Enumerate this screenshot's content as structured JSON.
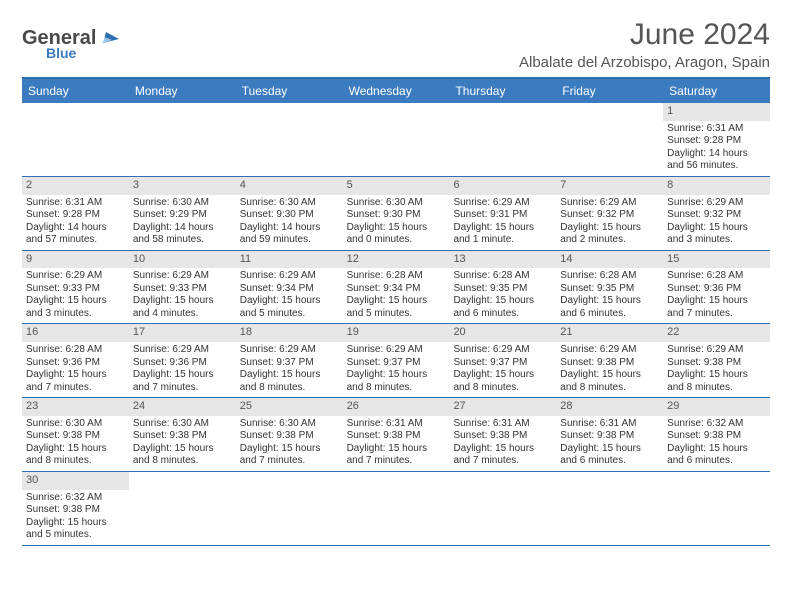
{
  "logo": {
    "primary": "General",
    "secondary": "Blue"
  },
  "title": "June 2024",
  "location": "Albalate del Arzobispo, Aragon, Spain",
  "colors": {
    "header_bg": "#3b7bbf",
    "rule": "#2e6fb0",
    "daynum_bg": "#e6e6e6",
    "text": "#333333",
    "muted": "#555555"
  },
  "typography": {
    "title_fontsize": 30,
    "location_fontsize": 15,
    "dow_fontsize": 12,
    "daynum_fontsize": 11,
    "body_fontsize": 10
  },
  "days_of_week": [
    "Sunday",
    "Monday",
    "Tuesday",
    "Wednesday",
    "Thursday",
    "Friday",
    "Saturday"
  ],
  "weeks": [
    [
      {
        "empty": true
      },
      {
        "empty": true
      },
      {
        "empty": true
      },
      {
        "empty": true
      },
      {
        "empty": true
      },
      {
        "empty": true
      },
      {
        "num": "1",
        "sunrise": "Sunrise: 6:31 AM",
        "sunset": "Sunset: 9:28 PM",
        "daylight": "Daylight: 14 hours and 56 minutes."
      }
    ],
    [
      {
        "num": "2",
        "sunrise": "Sunrise: 6:31 AM",
        "sunset": "Sunset: 9:28 PM",
        "daylight": "Daylight: 14 hours and 57 minutes."
      },
      {
        "num": "3",
        "sunrise": "Sunrise: 6:30 AM",
        "sunset": "Sunset: 9:29 PM",
        "daylight": "Daylight: 14 hours and 58 minutes."
      },
      {
        "num": "4",
        "sunrise": "Sunrise: 6:30 AM",
        "sunset": "Sunset: 9:30 PM",
        "daylight": "Daylight: 14 hours and 59 minutes."
      },
      {
        "num": "5",
        "sunrise": "Sunrise: 6:30 AM",
        "sunset": "Sunset: 9:30 PM",
        "daylight": "Daylight: 15 hours and 0 minutes."
      },
      {
        "num": "6",
        "sunrise": "Sunrise: 6:29 AM",
        "sunset": "Sunset: 9:31 PM",
        "daylight": "Daylight: 15 hours and 1 minute."
      },
      {
        "num": "7",
        "sunrise": "Sunrise: 6:29 AM",
        "sunset": "Sunset: 9:32 PM",
        "daylight": "Daylight: 15 hours and 2 minutes."
      },
      {
        "num": "8",
        "sunrise": "Sunrise: 6:29 AM",
        "sunset": "Sunset: 9:32 PM",
        "daylight": "Daylight: 15 hours and 3 minutes."
      }
    ],
    [
      {
        "num": "9",
        "sunrise": "Sunrise: 6:29 AM",
        "sunset": "Sunset: 9:33 PM",
        "daylight": "Daylight: 15 hours and 3 minutes."
      },
      {
        "num": "10",
        "sunrise": "Sunrise: 6:29 AM",
        "sunset": "Sunset: 9:33 PM",
        "daylight": "Daylight: 15 hours and 4 minutes."
      },
      {
        "num": "11",
        "sunrise": "Sunrise: 6:29 AM",
        "sunset": "Sunset: 9:34 PM",
        "daylight": "Daylight: 15 hours and 5 minutes."
      },
      {
        "num": "12",
        "sunrise": "Sunrise: 6:28 AM",
        "sunset": "Sunset: 9:34 PM",
        "daylight": "Daylight: 15 hours and 5 minutes."
      },
      {
        "num": "13",
        "sunrise": "Sunrise: 6:28 AM",
        "sunset": "Sunset: 9:35 PM",
        "daylight": "Daylight: 15 hours and 6 minutes."
      },
      {
        "num": "14",
        "sunrise": "Sunrise: 6:28 AM",
        "sunset": "Sunset: 9:35 PM",
        "daylight": "Daylight: 15 hours and 6 minutes."
      },
      {
        "num": "15",
        "sunrise": "Sunrise: 6:28 AM",
        "sunset": "Sunset: 9:36 PM",
        "daylight": "Daylight: 15 hours and 7 minutes."
      }
    ],
    [
      {
        "num": "16",
        "sunrise": "Sunrise: 6:28 AM",
        "sunset": "Sunset: 9:36 PM",
        "daylight": "Daylight: 15 hours and 7 minutes."
      },
      {
        "num": "17",
        "sunrise": "Sunrise: 6:29 AM",
        "sunset": "Sunset: 9:36 PM",
        "daylight": "Daylight: 15 hours and 7 minutes."
      },
      {
        "num": "18",
        "sunrise": "Sunrise: 6:29 AM",
        "sunset": "Sunset: 9:37 PM",
        "daylight": "Daylight: 15 hours and 8 minutes."
      },
      {
        "num": "19",
        "sunrise": "Sunrise: 6:29 AM",
        "sunset": "Sunset: 9:37 PM",
        "daylight": "Daylight: 15 hours and 8 minutes."
      },
      {
        "num": "20",
        "sunrise": "Sunrise: 6:29 AM",
        "sunset": "Sunset: 9:37 PM",
        "daylight": "Daylight: 15 hours and 8 minutes."
      },
      {
        "num": "21",
        "sunrise": "Sunrise: 6:29 AM",
        "sunset": "Sunset: 9:38 PM",
        "daylight": "Daylight: 15 hours and 8 minutes."
      },
      {
        "num": "22",
        "sunrise": "Sunrise: 6:29 AM",
        "sunset": "Sunset: 9:38 PM",
        "daylight": "Daylight: 15 hours and 8 minutes."
      }
    ],
    [
      {
        "num": "23",
        "sunrise": "Sunrise: 6:30 AM",
        "sunset": "Sunset: 9:38 PM",
        "daylight": "Daylight: 15 hours and 8 minutes."
      },
      {
        "num": "24",
        "sunrise": "Sunrise: 6:30 AM",
        "sunset": "Sunset: 9:38 PM",
        "daylight": "Daylight: 15 hours and 8 minutes."
      },
      {
        "num": "25",
        "sunrise": "Sunrise: 6:30 AM",
        "sunset": "Sunset: 9:38 PM",
        "daylight": "Daylight: 15 hours and 7 minutes."
      },
      {
        "num": "26",
        "sunrise": "Sunrise: 6:31 AM",
        "sunset": "Sunset: 9:38 PM",
        "daylight": "Daylight: 15 hours and 7 minutes."
      },
      {
        "num": "27",
        "sunrise": "Sunrise: 6:31 AM",
        "sunset": "Sunset: 9:38 PM",
        "daylight": "Daylight: 15 hours and 7 minutes."
      },
      {
        "num": "28",
        "sunrise": "Sunrise: 6:31 AM",
        "sunset": "Sunset: 9:38 PM",
        "daylight": "Daylight: 15 hours and 6 minutes."
      },
      {
        "num": "29",
        "sunrise": "Sunrise: 6:32 AM",
        "sunset": "Sunset: 9:38 PM",
        "daylight": "Daylight: 15 hours and 6 minutes."
      }
    ],
    [
      {
        "num": "30",
        "sunrise": "Sunrise: 6:32 AM",
        "sunset": "Sunset: 9:38 PM",
        "daylight": "Daylight: 15 hours and 5 minutes."
      },
      {
        "empty": true
      },
      {
        "empty": true
      },
      {
        "empty": true
      },
      {
        "empty": true
      },
      {
        "empty": true
      },
      {
        "empty": true
      }
    ]
  ]
}
